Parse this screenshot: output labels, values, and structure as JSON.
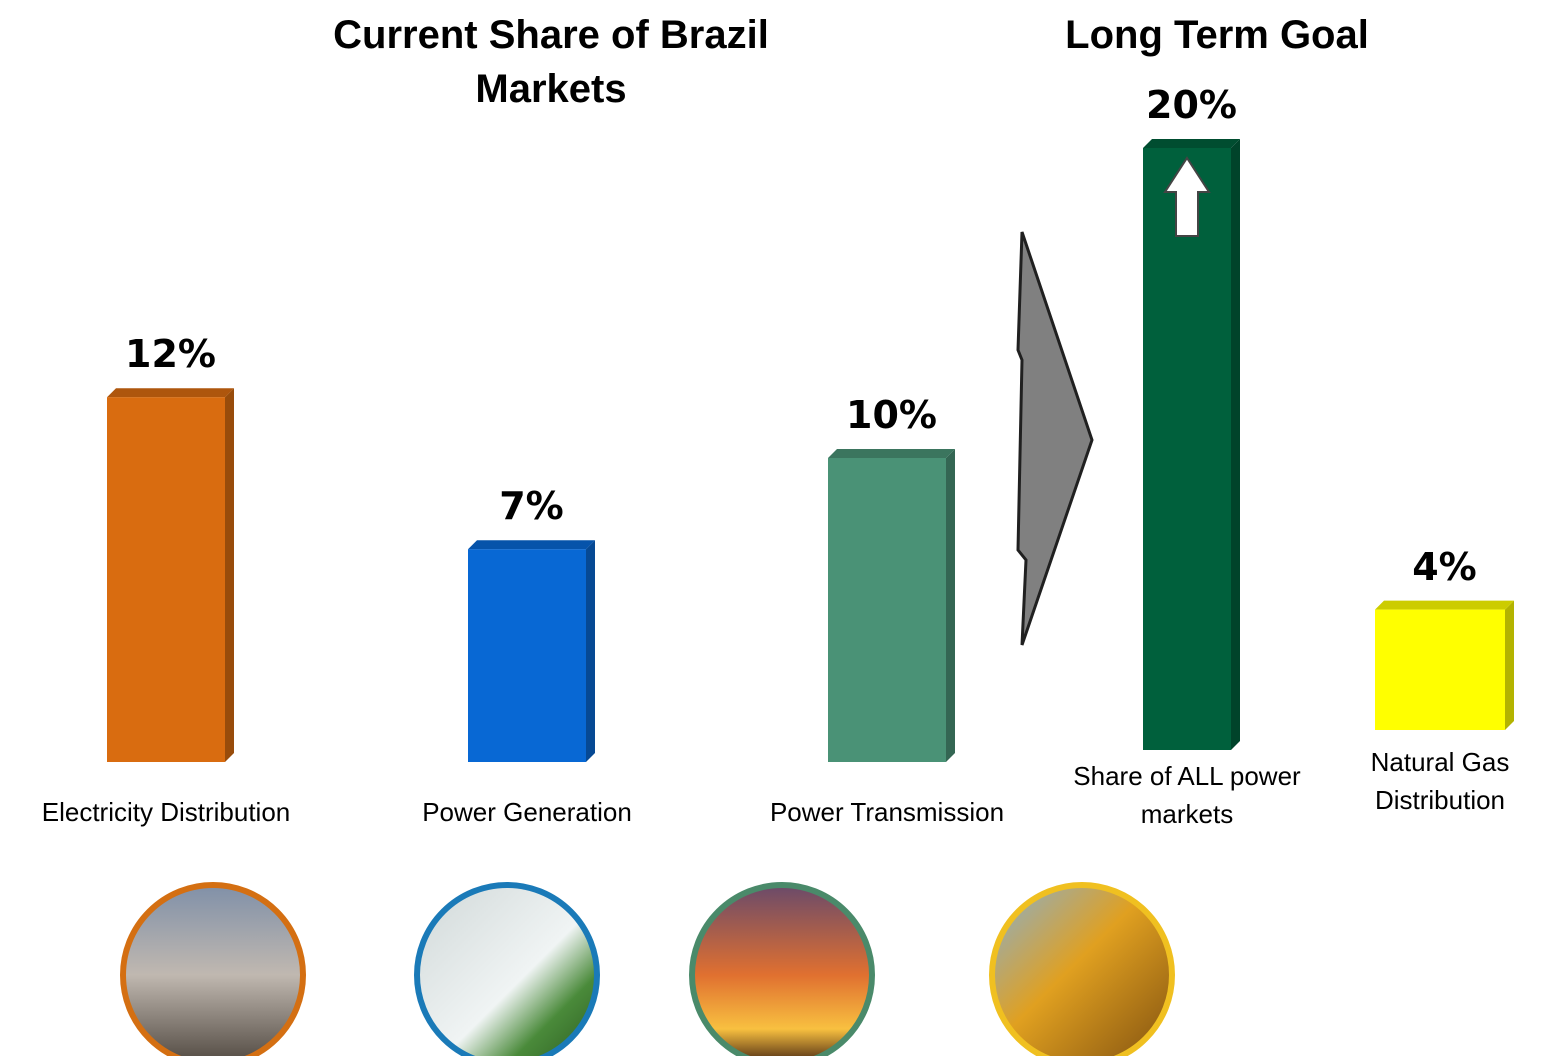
{
  "chart_data": [
    {
      "type": "bar",
      "title": "Current Share of Brazil Markets",
      "categories": [
        "Electricity Distribution",
        "Power Generation",
        "Power Transmission"
      ],
      "values": [
        12,
        7,
        10
      ],
      "value_labels": [
        "12%",
        "7%",
        "10%"
      ],
      "colors": [
        "#d96c10",
        "#0868d4",
        "#4a9276"
      ]
    },
    {
      "type": "bar",
      "title": "Long Term Goal",
      "categories": [
        "Share of ALL power markets",
        "Natural Gas Distribution"
      ],
      "values": [
        20,
        4
      ],
      "value_labels": [
        "20%",
        "4%"
      ],
      "colors": [
        "#00603c",
        "#ffff00"
      ]
    }
  ]
}
